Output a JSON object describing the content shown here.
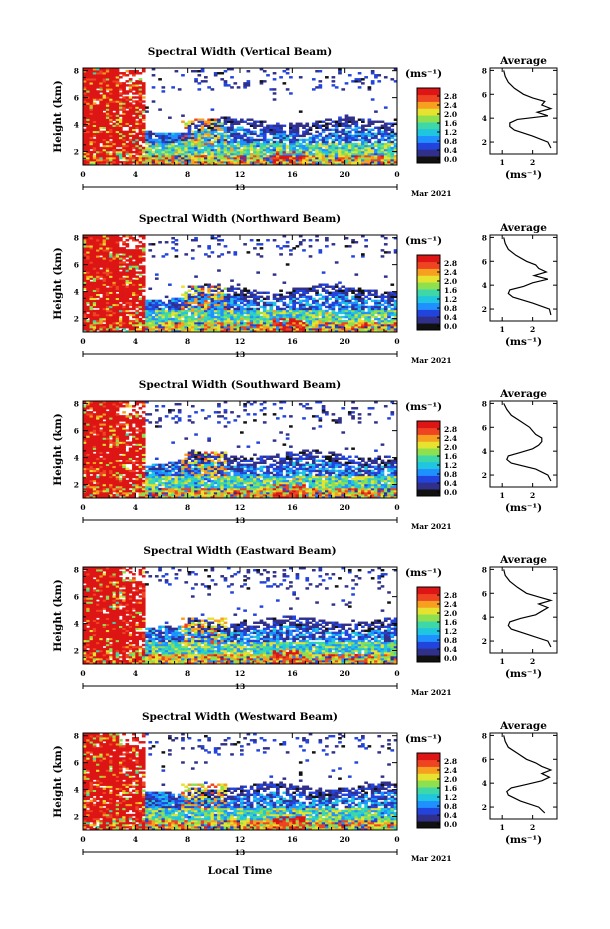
{
  "chart_data": {
    "type": "heatmap",
    "month_label": "Mar 2021",
    "day_label": "13",
    "xlabel": "Local Time",
    "ylabel": "Height (km)",
    "x_ticks": [
      "0",
      "4",
      "8",
      "12",
      "16",
      "20",
      "0"
    ],
    "y_ticks": [
      "2",
      "4",
      "6",
      "8"
    ],
    "xlim": [
      0,
      24
    ],
    "ylim": [
      1,
      8.2
    ],
    "colorbar": {
      "unit_label": "(ms⁻¹)",
      "ticks": [
        "0.0",
        "0.4",
        "0.8",
        "1.2",
        "1.6",
        "2.0",
        "2.4",
        "2.8"
      ],
      "range": [
        0,
        3.0
      ],
      "colors": [
        "#111111",
        "#30308a",
        "#2244dd",
        "#1e90ff",
        "#20c5e0",
        "#3ed8a8",
        "#8ee04f",
        "#e6e230",
        "#f7a020",
        "#ee4422",
        "#dd1515"
      ]
    },
    "average_panel": {
      "title": "Average",
      "xlabel": "(ms⁻¹)",
      "x_ticks": [
        "1",
        "2"
      ],
      "y_ticks": [
        "2",
        "4",
        "6",
        "8"
      ],
      "xlim": [
        0.6,
        2.8
      ],
      "ylim": [
        1,
        8.2
      ]
    },
    "panels": [
      {
        "title": "Spectral Width (Vertical Beam)",
        "average_profile": {
          "height_km": [
            1.5,
            2.0,
            2.5,
            3.0,
            3.3,
            3.6,
            3.9,
            4.2,
            4.5,
            4.8,
            5.1,
            5.4,
            5.7,
            6.0,
            6.5,
            7.0,
            7.5,
            8.0
          ],
          "width_ms": [
            2.6,
            2.5,
            2.0,
            1.4,
            1.25,
            1.25,
            1.5,
            2.5,
            2.15,
            2.6,
            2.3,
            2.4,
            2.0,
            1.7,
            1.4,
            1.2,
            1.1,
            1.05
          ]
        }
      },
      {
        "title": "Spectral Width (Northward Beam)",
        "average_profile": {
          "height_km": [
            1.5,
            2.0,
            2.5,
            3.0,
            3.3,
            3.6,
            3.9,
            4.2,
            4.5,
            4.8,
            5.1,
            5.4,
            5.7,
            6.0,
            6.5,
            7.0,
            7.5,
            8.0
          ],
          "width_ms": [
            2.6,
            2.55,
            2.0,
            1.35,
            1.2,
            1.25,
            1.7,
            2.0,
            2.5,
            2.05,
            2.45,
            2.2,
            2.1,
            1.8,
            1.45,
            1.2,
            1.1,
            1.05
          ]
        }
      },
      {
        "title": "Spectral Width (Southward Beam)",
        "average_profile": {
          "height_km": [
            1.5,
            2.0,
            2.5,
            3.0,
            3.3,
            3.6,
            3.9,
            4.2,
            4.5,
            4.8,
            5.1,
            5.4,
            5.7,
            6.0,
            6.5,
            7.0,
            7.5,
            8.0
          ],
          "width_ms": [
            2.6,
            2.5,
            2.1,
            1.3,
            1.15,
            1.2,
            1.6,
            2.0,
            2.2,
            2.3,
            2.3,
            2.1,
            2.0,
            1.9,
            1.6,
            1.3,
            1.15,
            1.05
          ]
        }
      },
      {
        "title": "Spectral Width (Eastward Beam)",
        "average_profile": {
          "height_km": [
            1.5,
            2.0,
            2.5,
            3.0,
            3.3,
            3.6,
            3.9,
            4.2,
            4.5,
            4.8,
            5.1,
            5.4,
            5.7,
            6.0,
            6.5,
            7.0,
            7.5,
            8.0
          ],
          "width_ms": [
            2.6,
            2.5,
            1.9,
            1.3,
            1.2,
            1.25,
            1.6,
            2.1,
            2.3,
            2.5,
            2.2,
            2.6,
            2.2,
            1.8,
            1.5,
            1.25,
            1.1,
            1.05
          ]
        }
      },
      {
        "title": "Spectral Width (Westward Beam)",
        "average_profile": {
          "height_km": [
            1.5,
            2.0,
            2.5,
            3.0,
            3.3,
            3.6,
            3.9,
            4.2,
            4.5,
            4.8,
            5.1,
            5.4,
            5.7,
            6.0,
            6.5,
            7.0,
            7.5,
            8.0
          ],
          "width_ms": [
            2.4,
            2.2,
            1.6,
            1.2,
            1.15,
            1.3,
            1.8,
            2.3,
            2.55,
            2.3,
            2.6,
            2.3,
            2.1,
            1.8,
            1.5,
            1.2,
            1.1,
            1.05
          ]
        }
      }
    ]
  }
}
